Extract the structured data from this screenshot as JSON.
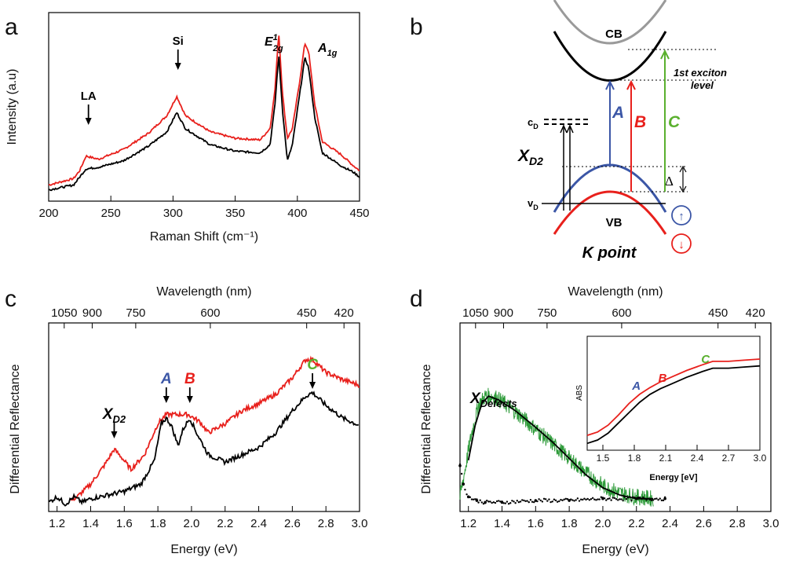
{
  "panels": {
    "a": {
      "letter": "a"
    },
    "b": {
      "letter": "b"
    },
    "c": {
      "letter": "c"
    },
    "d": {
      "letter": "d"
    }
  },
  "chart_data": [
    {
      "panel": "a",
      "type": "line",
      "xlabel": "Raman Shift (cm⁻¹)",
      "ylabel": "Intensity (a.u)",
      "xlim": [
        200,
        450
      ],
      "ylim": [
        0,
        1
      ],
      "x_ticks": [
        200,
        250,
        300,
        350,
        400,
        450
      ],
      "colors": {
        "red": "#e8201c",
        "black": "#000000"
      },
      "series": [
        {
          "color": "#e8201c",
          "points": [
            [
              200,
              0.05
            ],
            [
              220,
              0.09
            ],
            [
              225,
              0.14
            ],
            [
              230,
              0.23
            ],
            [
              240,
              0.21
            ],
            [
              260,
              0.27
            ],
            [
              280,
              0.37
            ],
            [
              295,
              0.48
            ],
            [
              303,
              0.6
            ],
            [
              310,
              0.48
            ],
            [
              330,
              0.38
            ],
            [
              350,
              0.34
            ],
            [
              370,
              0.33
            ],
            [
              378,
              0.4
            ],
            [
              382,
              0.64
            ],
            [
              385,
              1.0
            ],
            [
              388,
              0.62
            ],
            [
              392,
              0.34
            ],
            [
              396,
              0.4
            ],
            [
              402,
              0.7
            ],
            [
              406,
              0.93
            ],
            [
              409,
              0.88
            ],
            [
              414,
              0.55
            ],
            [
              420,
              0.32
            ],
            [
              435,
              0.24
            ],
            [
              445,
              0.17
            ],
            [
              450,
              0.14
            ]
          ]
        },
        {
          "color": "#000000",
          "points": [
            [
              200,
              0.02
            ],
            [
              220,
              0.05
            ],
            [
              225,
              0.1
            ],
            [
              230,
              0.15
            ],
            [
              240,
              0.16
            ],
            [
              260,
              0.2
            ],
            [
              280,
              0.29
            ],
            [
              295,
              0.38
            ],
            [
              303,
              0.5
            ],
            [
              310,
              0.4
            ],
            [
              330,
              0.3
            ],
            [
              350,
              0.26
            ],
            [
              370,
              0.25
            ],
            [
              378,
              0.3
            ],
            [
              382,
              0.55
            ],
            [
              385,
              0.86
            ],
            [
              388,
              0.52
            ],
            [
              392,
              0.2
            ],
            [
              396,
              0.3
            ],
            [
              402,
              0.62
            ],
            [
              406,
              0.84
            ],
            [
              409,
              0.78
            ],
            [
              414,
              0.47
            ],
            [
              420,
              0.25
            ],
            [
              435,
              0.17
            ],
            [
              445,
              0.13
            ],
            [
              450,
              0.1
            ]
          ]
        }
      ],
      "annotations": [
        {
          "text": "LA",
          "x": 232
        },
        {
          "text": "Si",
          "x": 304
        }
      ],
      "peak_labels": {
        "e2g": {
          "main": "E",
          "sup": "1",
          "sub": "2g"
        },
        "a1g": {
          "main": "A",
          "sub": "1g"
        }
      }
    },
    {
      "panel": "c",
      "type": "line",
      "xlabel": "Energy (eV)",
      "ylabel": "Differential Reflectance",
      "top_axis_label": "Wavelength (nm)",
      "top_ticks": [
        "1050",
        "900",
        "750",
        "600",
        "450",
        "420"
      ],
      "xlim": [
        1.15,
        3.0
      ],
      "ylim": [
        0,
        1
      ],
      "x_ticks": [
        "1.2",
        "1.4",
        "1.6",
        "1.8",
        "2.0",
        "2.2",
        "2.4",
        "2.6",
        "2.8",
        "3.0"
      ],
      "series": [
        {
          "color": "#e8201c",
          "points": [
            [
              1.28,
              0.03
            ],
            [
              1.32,
              0.05
            ],
            [
              1.4,
              0.12
            ],
            [
              1.48,
              0.22
            ],
            [
              1.54,
              0.31
            ],
            [
              1.58,
              0.27
            ],
            [
              1.64,
              0.2
            ],
            [
              1.72,
              0.28
            ],
            [
              1.8,
              0.45
            ],
            [
              1.85,
              0.5
            ],
            [
              1.92,
              0.5
            ],
            [
              1.98,
              0.5
            ],
            [
              2.05,
              0.46
            ],
            [
              2.1,
              0.4
            ],
            [
              2.2,
              0.45
            ],
            [
              2.3,
              0.52
            ],
            [
              2.4,
              0.56
            ],
            [
              2.5,
              0.61
            ],
            [
              2.6,
              0.7
            ],
            [
              2.68,
              0.8
            ],
            [
              2.72,
              0.8
            ],
            [
              2.8,
              0.73
            ],
            [
              2.9,
              0.69
            ],
            [
              3.0,
              0.66
            ]
          ]
        },
        {
          "color": "#000000",
          "points": [
            [
              1.15,
              0.02
            ],
            [
              1.2,
              0.05
            ],
            [
              1.25,
              0.01
            ],
            [
              1.3,
              0.05
            ],
            [
              1.35,
              0.02
            ],
            [
              1.4,
              0.04
            ],
            [
              1.5,
              0.06
            ],
            [
              1.6,
              0.08
            ],
            [
              1.7,
              0.12
            ],
            [
              1.78,
              0.25
            ],
            [
              1.82,
              0.45
            ],
            [
              1.85,
              0.48
            ],
            [
              1.88,
              0.44
            ],
            [
              1.92,
              0.33
            ],
            [
              1.95,
              0.42
            ],
            [
              1.99,
              0.48
            ],
            [
              2.03,
              0.4
            ],
            [
              2.1,
              0.28
            ],
            [
              2.2,
              0.24
            ],
            [
              2.3,
              0.28
            ],
            [
              2.4,
              0.32
            ],
            [
              2.5,
              0.4
            ],
            [
              2.6,
              0.52
            ],
            [
              2.68,
              0.6
            ],
            [
              2.72,
              0.62
            ],
            [
              2.8,
              0.55
            ],
            [
              2.9,
              0.48
            ],
            [
              3.0,
              0.44
            ]
          ]
        }
      ],
      "annotations": [
        {
          "key": "xd2",
          "main": "X",
          "sub": "D2",
          "x": 1.54,
          "color": "#000000"
        },
        {
          "key": "A",
          "text": "A",
          "x": 1.85,
          "color": "#3b56a6"
        },
        {
          "key": "B",
          "text": "B",
          "x": 1.99,
          "color": "#e8201c"
        },
        {
          "key": "C",
          "text": "C",
          "x": 2.72,
          "color": "#5ab02e"
        }
      ]
    },
    {
      "panel": "d",
      "type": "line",
      "xlabel": "Energy (eV)",
      "ylabel": "Differential Reflectance",
      "top_axis_label": "Wavelength (nm)",
      "top_ticks": [
        "1050",
        "900",
        "750",
        "600",
        "450",
        "420"
      ],
      "xlim": [
        1.15,
        3.0
      ],
      "ylim": [
        0,
        1
      ],
      "x_ticks": [
        "1.2",
        "1.4",
        "1.6",
        "1.8",
        "2.0",
        "2.2",
        "2.4",
        "2.6",
        "2.8",
        "3.0"
      ],
      "series": [
        {
          "color": "#2e9b3a",
          "noisy": true,
          "points": [
            [
              1.15,
              0.05
            ],
            [
              1.18,
              0.2
            ],
            [
              1.22,
              0.4
            ],
            [
              1.26,
              0.55
            ],
            [
              1.3,
              0.6
            ],
            [
              1.35,
              0.6
            ],
            [
              1.4,
              0.57
            ],
            [
              1.5,
              0.5
            ],
            [
              1.6,
              0.42
            ],
            [
              1.7,
              0.34
            ],
            [
              1.8,
              0.26
            ],
            [
              1.9,
              0.18
            ],
            [
              2.0,
              0.11
            ],
            [
              2.1,
              0.07
            ],
            [
              2.2,
              0.05
            ],
            [
              2.3,
              0.04
            ]
          ]
        },
        {
          "color": "#000000",
          "points": [
            [
              1.2,
              0.25
            ],
            [
              1.24,
              0.44
            ],
            [
              1.28,
              0.56
            ],
            [
              1.32,
              0.6
            ],
            [
              1.38,
              0.58
            ],
            [
              1.48,
              0.52
            ],
            [
              1.6,
              0.43
            ],
            [
              1.7,
              0.35
            ],
            [
              1.8,
              0.26
            ],
            [
              1.9,
              0.17
            ],
            [
              2.0,
              0.1
            ],
            [
              2.1,
              0.06
            ],
            [
              2.2,
              0.04
            ],
            [
              2.3,
              0.04
            ]
          ]
        },
        {
          "color": "#000000",
          "dots": true,
          "points": [
            [
              1.15,
              0.22
            ],
            [
              1.17,
              0.12
            ],
            [
              1.2,
              0.05
            ],
            [
              1.25,
              0.03
            ],
            [
              1.3,
              0.02
            ],
            [
              1.4,
              0.02
            ],
            [
              1.6,
              0.03
            ],
            [
              1.8,
              0.03
            ],
            [
              2.0,
              0.04
            ],
            [
              2.2,
              0.04
            ],
            [
              2.37,
              0.04
            ]
          ]
        }
      ],
      "annotations": [
        {
          "key": "xdefects",
          "main": "X",
          "sub": "Defects",
          "x": 1.35,
          "color": "#000000"
        }
      ],
      "inset": {
        "xlabel": "Energy [eV]",
        "ylabel": "ABS",
        "xlim": [
          1.35,
          3.0
        ],
        "ylim": [
          0,
          1
        ],
        "x_ticks": [
          "1.5",
          "1.8",
          "2.1",
          "2.4",
          "2.7",
          "3.0"
        ],
        "series": [
          {
            "color": "#e8201c",
            "points": [
              [
                1.35,
                0.13
              ],
              [
                1.45,
                0.16
              ],
              [
                1.55,
                0.22
              ],
              [
                1.65,
                0.31
              ],
              [
                1.75,
                0.41
              ],
              [
                1.85,
                0.49
              ],
              [
                1.95,
                0.55
              ],
              [
                2.05,
                0.6
              ],
              [
                2.15,
                0.64
              ],
              [
                2.3,
                0.7
              ],
              [
                2.45,
                0.75
              ],
              [
                2.55,
                0.78
              ],
              [
                2.7,
                0.78
              ],
              [
                2.85,
                0.79
              ],
              [
                3.0,
                0.8
              ]
            ]
          },
          {
            "color": "#000000",
            "points": [
              [
                1.35,
                0.06
              ],
              [
                1.45,
                0.09
              ],
              [
                1.55,
                0.15
              ],
              [
                1.65,
                0.24
              ],
              [
                1.75,
                0.33
              ],
              [
                1.85,
                0.42
              ],
              [
                1.95,
                0.49
              ],
              [
                2.05,
                0.54
              ],
              [
                2.15,
                0.58
              ],
              [
                2.3,
                0.64
              ],
              [
                2.45,
                0.69
              ],
              [
                2.55,
                0.72
              ],
              [
                2.7,
                0.72
              ],
              [
                2.85,
                0.73
              ],
              [
                3.0,
                0.74
              ]
            ]
          }
        ],
        "annotations": [
          {
            "text": "A",
            "x": 1.82,
            "color": "#3b56a6"
          },
          {
            "text": "B",
            "x": 2.07,
            "color": "#e8201c"
          },
          {
            "text": "C",
            "x": 2.48,
            "color": "#5ab02e"
          }
        ]
      }
    }
  ],
  "diagram_b": {
    "cb_label": "CB",
    "vb_label": "VB",
    "exciton_label_line1": "1st exciton",
    "exciton_label_line2": "level",
    "transitions": [
      {
        "text": "A",
        "color": "#3b56a6"
      },
      {
        "text": "B",
        "color": "#e8201c"
      },
      {
        "text": "C",
        "color": "#5ab02e"
      }
    ],
    "cd_label": {
      "main": "c",
      "sub": "D"
    },
    "vd_label": {
      "main": "v",
      "sub": "D"
    },
    "xd2_label": {
      "main": "X",
      "sub": "D2"
    },
    "delta_label": "Δ",
    "k_point_label": "K point",
    "spin_up": "↑",
    "spin_down": "↓",
    "colors": {
      "blue": "#3b56a6",
      "red": "#e8201c",
      "green": "#5ab02e",
      "gray": "#9a9a9a"
    }
  }
}
